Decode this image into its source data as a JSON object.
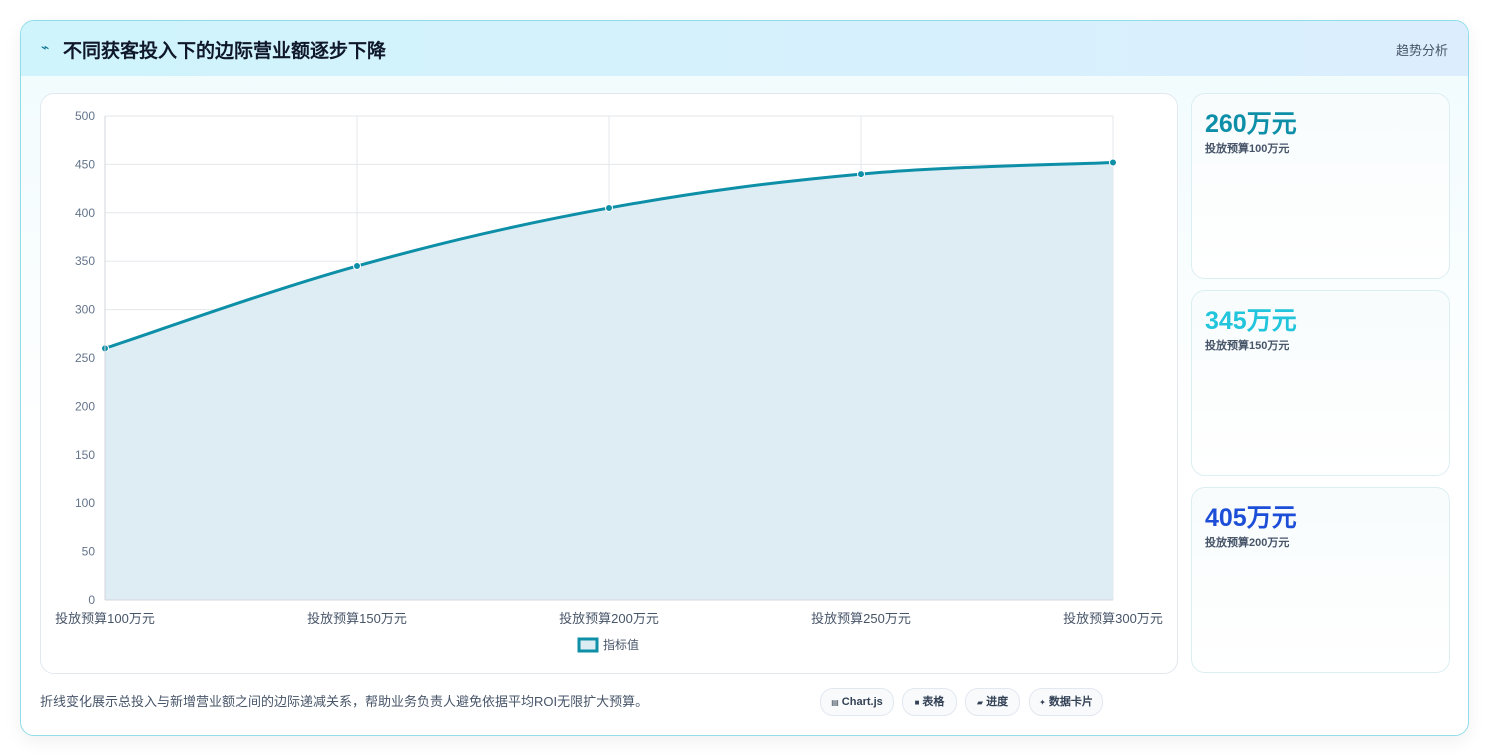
{
  "header": {
    "title": "不同获客投入下的边际营业额逐步下降",
    "tag": "趋势分析",
    "icon": "lightning-icon"
  },
  "chart_data": {
    "type": "area",
    "categories": [
      "投放预算100万元",
      "投放预算150万元",
      "投放预算200万元",
      "投放预算250万元",
      "投放预算300万元"
    ],
    "series": [
      {
        "name": "指标值",
        "values": [
          260,
          345,
          405,
          440,
          452
        ],
        "color": "#0e8fa8",
        "fill": "#dcecf3"
      }
    ],
    "ylim": [
      0,
      500
    ],
    "yticks": [
      0,
      50,
      100,
      150,
      200,
      250,
      300,
      350,
      400,
      450,
      500
    ],
    "grid": true,
    "legend": "bottom"
  },
  "kpis": [
    {
      "value": "260万元",
      "label": "投放预算100万元",
      "color": "#0e8fa8"
    },
    {
      "value": "345万元",
      "label": "投放预算150万元",
      "color": "#22c5dc"
    },
    {
      "value": "405万元",
      "label": "投放预算200万元",
      "color": "#1d4ed8"
    }
  ],
  "footer": {
    "note": "折线变化展示总投入与新增营业额之间的边际递减关系，帮助业务负责人避免依据平均ROI无限扩大预算。",
    "chips": [
      {
        "label": "Chart.js",
        "icon": "chart-icon"
      },
      {
        "label": "表格",
        "icon": "table-icon"
      },
      {
        "label": "进度",
        "icon": "progress-icon"
      },
      {
        "label": "数据卡片",
        "icon": "card-icon"
      }
    ]
  }
}
